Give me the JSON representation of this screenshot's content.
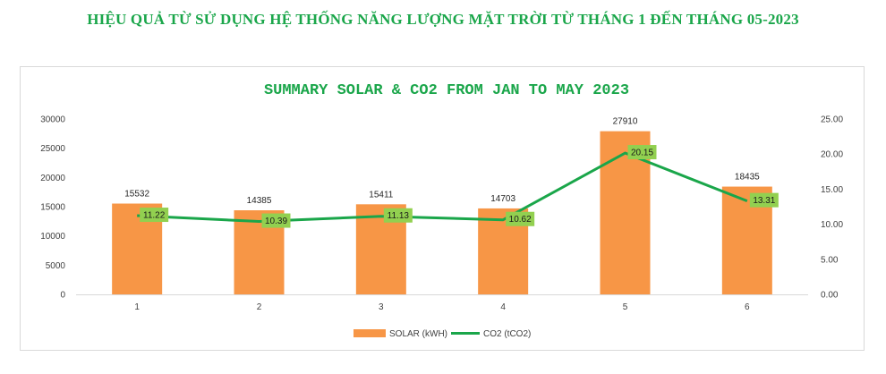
{
  "page": {
    "title": "HIỆU QUẢ TỪ SỬ DỤNG HỆ THỐNG NĂNG LƯỢNG MẶT TRỜI TỪ THÁNG 1 ĐẾN THÁNG 05-2023"
  },
  "chart_data": {
    "type": "bar",
    "title": "SUMMARY SOLAR & CO2 FROM JAN TO MAY 2023",
    "categories": [
      "1",
      "2",
      "3",
      "4",
      "5",
      "6"
    ],
    "series": [
      {
        "name": "SOLAR (kWH)",
        "type": "bar",
        "axis": "left",
        "color": "#f79646",
        "values": [
          15532,
          14385,
          15411,
          14703,
          27910,
          18435
        ]
      },
      {
        "name": "CO2 (tCO2)",
        "type": "line",
        "axis": "right",
        "color": "#1aa64a",
        "values": [
          11.22,
          10.39,
          11.13,
          10.62,
          20.15,
          13.31
        ]
      }
    ],
    "y_left": {
      "min": 0,
      "max": 30000,
      "ticks": [
        "0",
        "5000",
        "10000",
        "15000",
        "20000",
        "25000",
        "30000"
      ]
    },
    "y_right": {
      "min": 0,
      "max": 25,
      "ticks": [
        "0.00",
        "5.00",
        "10.00",
        "15.00",
        "20.00",
        "25.00"
      ]
    },
    "legend": {
      "position": "bottom"
    },
    "grid": false,
    "colors": {
      "title": "#1aa64a",
      "bar": "#f79646",
      "line": "#1aa64a",
      "label_box": "#92d050"
    }
  }
}
